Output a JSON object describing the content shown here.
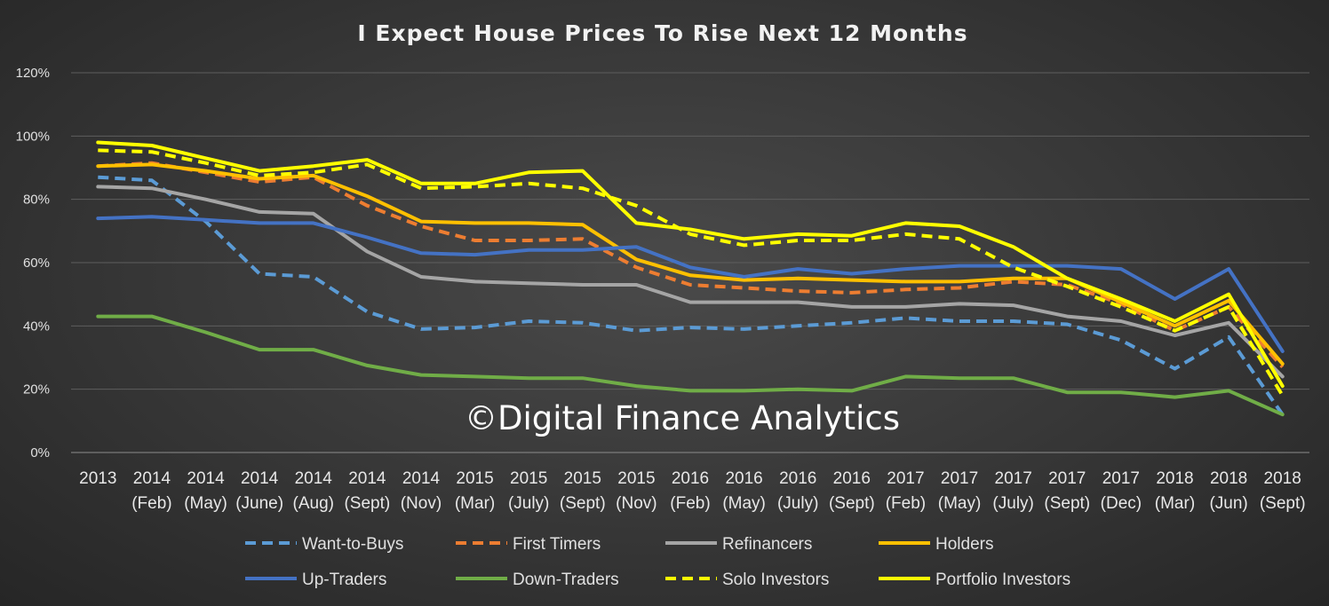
{
  "chart_data": {
    "type": "line",
    "title": "I Expect House Prices To Rise Next 12 Months",
    "watermark": "©Digital Finance Analytics",
    "xlabel": "",
    "ylabel": "",
    "ylim": [
      0,
      120
    ],
    "yticks": [
      "0%",
      "20%",
      "40%",
      "60%",
      "80%",
      "100%",
      "120%"
    ],
    "grid": true,
    "legend_position": "bottom",
    "categories": [
      [
        "2013",
        ""
      ],
      [
        "2014",
        "(Feb)"
      ],
      [
        "2014",
        "(May)"
      ],
      [
        "2014",
        "(June)"
      ],
      [
        "2014",
        "(Aug)"
      ],
      [
        "2014",
        "(Sept)"
      ],
      [
        "2014",
        "(Nov)"
      ],
      [
        "2015",
        "(Mar)"
      ],
      [
        "2015",
        "(July)"
      ],
      [
        "2015",
        "(Sept)"
      ],
      [
        "2015",
        "(Nov)"
      ],
      [
        "2016",
        "(Feb)"
      ],
      [
        "2016",
        "(May)"
      ],
      [
        "2016",
        "(July)"
      ],
      [
        "2016",
        "(Sept)"
      ],
      [
        "2017",
        "(Feb)"
      ],
      [
        "2017",
        "(May)"
      ],
      [
        "2017",
        "(July)"
      ],
      [
        "2017",
        "(Sept)"
      ],
      [
        "2017",
        "(Dec)"
      ],
      [
        "2018",
        "(Mar)"
      ],
      [
        "2018",
        "(Jun)"
      ],
      [
        "2018",
        "(Sept)"
      ]
    ],
    "series": [
      {
        "name": "Want-to-Buys",
        "color": "#5b9bd5",
        "dash": "dashed",
        "values": [
          87,
          86,
          73,
          56.5,
          55.5,
          44.5,
          39,
          39.5,
          41.5,
          41,
          38.5,
          39.5,
          39,
          40,
          41,
          42.5,
          41.5,
          41.5,
          40.5,
          35.5,
          26.5,
          36.5,
          12
        ]
      },
      {
        "name": "First Timers",
        "color": "#ed7d31",
        "dash": "dashed",
        "values": [
          90.5,
          91.5,
          88.5,
          85.5,
          87,
          78,
          71.5,
          67,
          67,
          67.5,
          58.5,
          53,
          52,
          51,
          50.5,
          51.5,
          52,
          54,
          53,
          47,
          38.5,
          46,
          27
        ]
      },
      {
        "name": "Refinancers",
        "color": "#a5a5a5",
        "dash": "solid",
        "values": [
          84,
          83.5,
          80,
          76,
          75.5,
          63.5,
          55.5,
          54,
          53.5,
          53,
          53,
          47.5,
          47.5,
          47.5,
          46,
          46,
          47,
          46.5,
          43,
          41.5,
          37,
          41,
          24
        ]
      },
      {
        "name": "Holders",
        "color": "#ffc000",
        "dash": "solid",
        "values": [
          90.5,
          91,
          89,
          86.5,
          87.5,
          81,
          73,
          72.5,
          72.5,
          72,
          61,
          56,
          54.5,
          55,
          54.5,
          54,
          54,
          55,
          55,
          47.5,
          40,
          48,
          28
        ]
      },
      {
        "name": "Up-Traders",
        "color": "#4472c4",
        "dash": "solid",
        "values": [
          74,
          74.5,
          73.5,
          72.5,
          72.5,
          68,
          63,
          62.5,
          64,
          64,
          65,
          58.5,
          55.5,
          58,
          56.5,
          58,
          59,
          59,
          59,
          58,
          48.5,
          58,
          32
        ]
      },
      {
        "name": "Down-Traders",
        "color": "#70ad47",
        "dash": "solid",
        "values": [
          43,
          43,
          38,
          32.5,
          32.5,
          27.5,
          24.5,
          24,
          23.5,
          23.5,
          21,
          19.5,
          19.5,
          20,
          19.5,
          24,
          23.5,
          23.5,
          19,
          19,
          17.5,
          19.5,
          12
        ]
      },
      {
        "name": "Solo Investors",
        "color": "#ffff00",
        "dash": "dashed",
        "values": [
          95.5,
          95,
          91.5,
          87.5,
          88.5,
          91,
          83.5,
          84,
          85,
          83.5,
          78,
          69,
          65.5,
          67,
          67,
          69,
          67.5,
          58.5,
          52.5,
          46,
          38.5,
          46,
          18
        ]
      },
      {
        "name": "Portfolio Investors",
        "color": "#ffff00",
        "dash": "solid",
        "values": [
          98,
          97,
          93,
          89,
          90.5,
          92.5,
          85,
          85,
          88.5,
          89,
          72.5,
          70.5,
          67.5,
          69,
          68.5,
          72.5,
          71.5,
          65,
          55,
          48.5,
          41.5,
          50,
          21
        ]
      }
    ]
  }
}
